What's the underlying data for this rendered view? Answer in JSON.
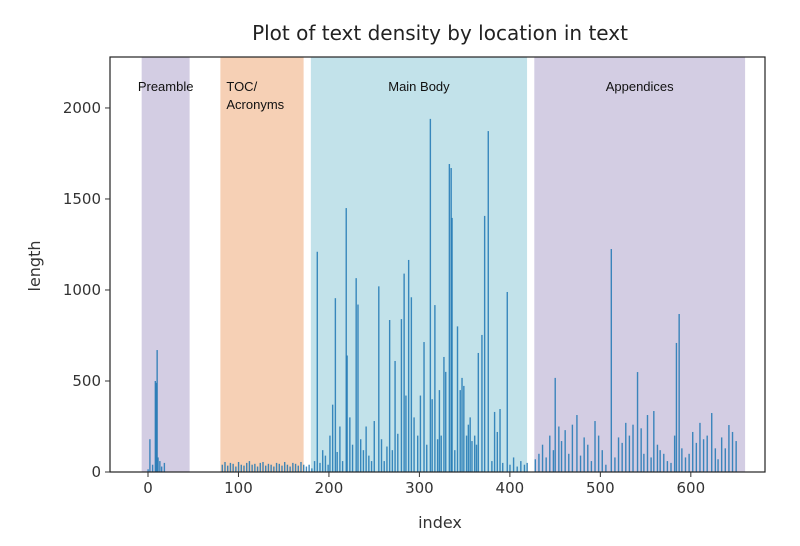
{
  "chart_data": {
    "type": "bar",
    "title": "Plot of text density by location in text",
    "xlabel": "index",
    "ylabel": "length",
    "xlim": [
      -42,
      682
    ],
    "ylim": [
      0,
      2280
    ],
    "xticks": [
      0,
      100,
      200,
      300,
      400,
      500,
      600
    ],
    "yticks": [
      0,
      500,
      1000,
      1500,
      2000
    ],
    "grid": false,
    "bar_color": "#1f77b4",
    "regions": [
      {
        "label": "Preamble",
        "range": [
          -7,
          46
        ],
        "color": "#d3cde3"
      },
      {
        "label": "TOC/\nAcronyms",
        "range": [
          80,
          172
        ],
        "color": "#f6d0b5"
      },
      {
        "label": "Main Body",
        "range": [
          180,
          419
        ],
        "color": "#c2e2ea"
      },
      {
        "label": "Appendices",
        "range": [
          427,
          660
        ],
        "color": "#d3cde3"
      }
    ],
    "bars": [
      [
        0,
        15
      ],
      [
        2,
        180
      ],
      [
        5,
        40
      ],
      [
        8,
        500
      ],
      [
        9,
        490
      ],
      [
        10,
        670
      ],
      [
        11,
        80
      ],
      [
        13,
        60
      ],
      [
        15,
        30
      ],
      [
        18,
        50
      ],
      [
        82,
        40
      ],
      [
        85,
        55
      ],
      [
        88,
        35
      ],
      [
        91,
        50
      ],
      [
        94,
        45
      ],
      [
        97,
        30
      ],
      [
        100,
        55
      ],
      [
        103,
        40
      ],
      [
        106,
        35
      ],
      [
        109,
        50
      ],
      [
        112,
        60
      ],
      [
        115,
        40
      ],
      [
        118,
        45
      ],
      [
        121,
        30
      ],
      [
        124,
        50
      ],
      [
        127,
        55
      ],
      [
        130,
        35
      ],
      [
        133,
        45
      ],
      [
        136,
        40
      ],
      [
        139,
        30
      ],
      [
        142,
        50
      ],
      [
        145,
        45
      ],
      [
        148,
        35
      ],
      [
        151,
        55
      ],
      [
        154,
        40
      ],
      [
        157,
        30
      ],
      [
        160,
        50
      ],
      [
        163,
        45
      ],
      [
        166,
        35
      ],
      [
        169,
        55
      ],
      [
        172,
        40
      ],
      [
        175,
        30
      ],
      [
        178,
        40
      ],
      [
        181,
        20
      ],
      [
        184,
        60
      ],
      [
        187,
        1210
      ],
      [
        190,
        50
      ],
      [
        193,
        120
      ],
      [
        196,
        90
      ],
      [
        199,
        40
      ],
      [
        201,
        200
      ],
      [
        204,
        370
      ],
      [
        207,
        955
      ],
      [
        209,
        110
      ],
      [
        212,
        250
      ],
      [
        215,
        60
      ],
      [
        219,
        1450
      ],
      [
        220,
        640
      ],
      [
        223,
        300
      ],
      [
        226,
        150
      ],
      [
        230,
        1065
      ],
      [
        232,
        920
      ],
      [
        235,
        180
      ],
      [
        238,
        120
      ],
      [
        241,
        250
      ],
      [
        244,
        90
      ],
      [
        247,
        60
      ],
      [
        250,
        280
      ],
      [
        255,
        1020
      ],
      [
        258,
        180
      ],
      [
        261,
        60
      ],
      [
        264,
        140
      ],
      [
        267,
        835
      ],
      [
        270,
        120
      ],
      [
        273,
        610
      ],
      [
        276,
        210
      ],
      [
        280,
        840
      ],
      [
        283,
        1090
      ],
      [
        285,
        420
      ],
      [
        288,
        1165
      ],
      [
        291,
        960
      ],
      [
        294,
        300
      ],
      [
        298,
        200
      ],
      [
        301,
        420
      ],
      [
        305,
        714
      ],
      [
        308,
        150
      ],
      [
        312,
        1940
      ],
      [
        314,
        400
      ],
      [
        317,
        917
      ],
      [
        320,
        180
      ],
      [
        322,
        450
      ],
      [
        324,
        200
      ],
      [
        327,
        632
      ],
      [
        329,
        550
      ],
      [
        333,
        1692
      ],
      [
        335,
        1670
      ],
      [
        336,
        1396
      ],
      [
        339,
        120
      ],
      [
        342,
        800
      ],
      [
        345,
        450
      ],
      [
        347,
        517
      ],
      [
        349,
        473
      ],
      [
        352,
        200
      ],
      [
        354,
        260
      ],
      [
        356,
        300
      ],
      [
        358,
        170
      ],
      [
        361,
        200
      ],
      [
        363,
        150
      ],
      [
        365,
        654
      ],
      [
        369,
        753
      ],
      [
        372,
        1407
      ],
      [
        376,
        1873
      ],
      [
        380,
        60
      ],
      [
        383,
        330
      ],
      [
        386,
        220
      ],
      [
        389,
        346
      ],
      [
        392,
        50
      ],
      [
        397,
        989
      ],
      [
        400,
        40
      ],
      [
        404,
        80
      ],
      [
        408,
        30
      ],
      [
        412,
        60
      ],
      [
        416,
        40
      ],
      [
        419,
        50
      ],
      [
        428,
        70
      ],
      [
        432,
        100
      ],
      [
        436,
        150
      ],
      [
        440,
        80
      ],
      [
        444,
        200
      ],
      [
        448,
        120
      ],
      [
        450,
        517
      ],
      [
        454,
        250
      ],
      [
        457,
        170
      ],
      [
        461,
        230
      ],
      [
        465,
        100
      ],
      [
        469,
        260
      ],
      [
        474,
        313
      ],
      [
        478,
        90
      ],
      [
        482,
        190
      ],
      [
        486,
        150
      ],
      [
        490,
        60
      ],
      [
        494,
        280
      ],
      [
        498,
        200
      ],
      [
        502,
        120
      ],
      [
        506,
        40
      ],
      [
        512,
        1225
      ],
      [
        516,
        80
      ],
      [
        520,
        190
      ],
      [
        524,
        160
      ],
      [
        528,
        270
      ],
      [
        532,
        200
      ],
      [
        536,
        260
      ],
      [
        541,
        549
      ],
      [
        545,
        240
      ],
      [
        548,
        100
      ],
      [
        552,
        313
      ],
      [
        556,
        80
      ],
      [
        559,
        335
      ],
      [
        563,
        150
      ],
      [
        566,
        120
      ],
      [
        570,
        100
      ],
      [
        574,
        60
      ],
      [
        578,
        50
      ],
      [
        582,
        200
      ],
      [
        584,
        709
      ],
      [
        587,
        868
      ],
      [
        590,
        130
      ],
      [
        594,
        80
      ],
      [
        598,
        100
      ],
      [
        602,
        220
      ],
      [
        606,
        160
      ],
      [
        610,
        270
      ],
      [
        614,
        180
      ],
      [
        618,
        200
      ],
      [
        623,
        324
      ],
      [
        627,
        130
      ],
      [
        630,
        70
      ],
      [
        634,
        190
      ],
      [
        638,
        130
      ],
      [
        642,
        258
      ],
      [
        646,
        220
      ],
      [
        650,
        170
      ]
    ]
  }
}
